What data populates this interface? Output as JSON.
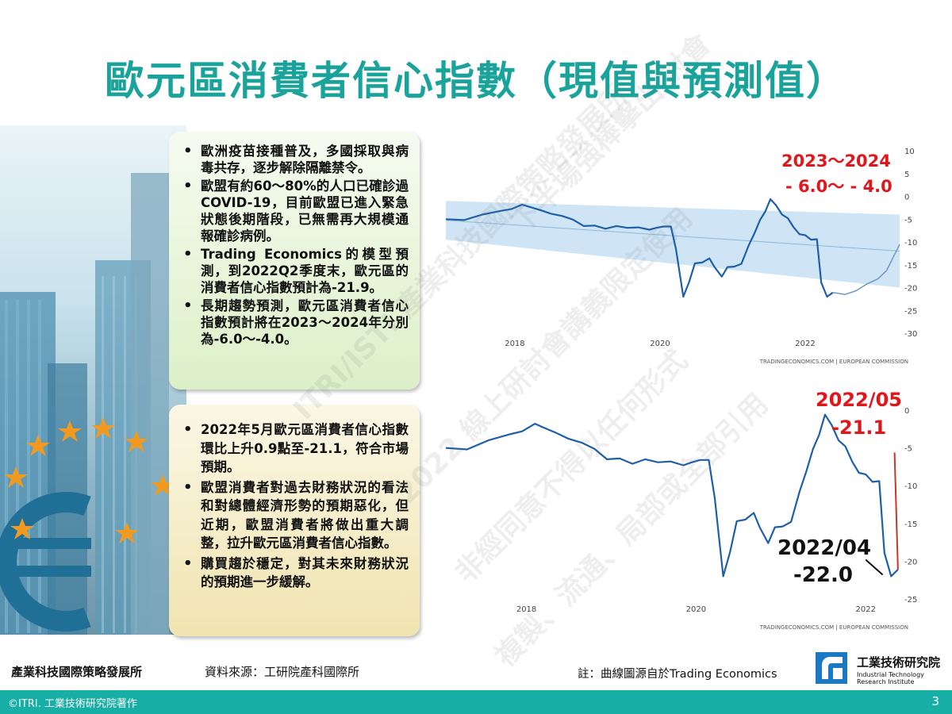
{
  "title": "歐元區消費者信心指數（現值與預測值）",
  "box1_bullets": [
    "歐洲疫苗接種普及，多國採取與病毒共存，逐步解除隔離禁令。",
    "歐盟有約60～80%的人口已確診過COVID-19，目前歐盟已進入緊急狀態後期階段，已無需再大規模通報確診病例。",
    "Trading Economics的模型預測，到2022Q2季度末，歐元區的消費者信心指數預計為-21.9。",
    "長期趨勢預測，歐元區消費者信心指數預計將在2023～2024年分別為-6.0～-4.0。"
  ],
  "box2_bullets": [
    "2022年5月歐元區消費者信心指數環比上升0.9點至-21.1，符合市場預期。",
    "歐盟消費者對過去財務狀況的看法和對總體經濟形勢的預期惡化，但近期，歐盟消費者將做出重大調整，拉升歐元區消費者信心指數。",
    "購買趨於穩定，對其未來財務狀況的預期進一步緩解。"
  ],
  "annotations": {
    "forecast_years": "2023～2024",
    "forecast_range": "- 6.0～ - 4.0",
    "may_date": "2022/05",
    "may_value": "-21.1",
    "apr_date": "2022/04",
    "apr_value": "-22.0"
  },
  "chart_source": "TRADINGECONOMICS.COM | EUROPEAN COMMISSION",
  "footer": {
    "org": "產業科技國際策略發展所",
    "source": "資料來源：工研院產科國際所",
    "note": "註：曲線圖源自於Trading Economics",
    "logo_name": "工業技術研究院",
    "logo_en": "Industrial Technology Research Institute",
    "copyright": "©ITRI. 工業技術研究院著作",
    "page": "3"
  },
  "watermark": [
    "ITRI/ISTI 產業科技國際策略發展所",
    "2022 線上研討會講義限定使用",
    "非經同意不得以任何形式",
    "複製、流通、局部或全部引用",
    "下半場強棒擊出 討會",
    "精彩"
  ],
  "colors": {
    "title": "#1aa39a",
    "line": "#1f5fa8",
    "band": "#bfdcf3",
    "red_annotation": "#e0161b",
    "bar": "#17aea5"
  },
  "chart_data": [
    {
      "type": "line",
      "x_ticks": [
        "2018",
        "2020",
        "2022"
      ],
      "y_ticks": [
        10,
        5,
        0,
        -5,
        -10,
        -15,
        -20,
        -25,
        -30
      ],
      "ylim": [
        -30,
        10
      ],
      "xlim": [
        2017.05,
        2023.3
      ],
      "grid": false,
      "series": [
        {
          "values": [
            [
              2017.05,
              -5.0
            ],
            [
              2017.3,
              -5.2
            ],
            [
              2017.55,
              -4.0
            ],
            [
              2017.8,
              -3.2
            ],
            [
              2017.95,
              -2.8
            ],
            [
              2018.1,
              -1.8
            ],
            [
              2018.2,
              -2.3
            ],
            [
              2018.35,
              -3.0
            ],
            [
              2018.5,
              -3.8
            ],
            [
              2018.65,
              -4.3
            ],
            [
              2018.8,
              -5.1
            ],
            [
              2018.95,
              -6.5
            ],
            [
              2019.1,
              -6.4
            ],
            [
              2019.25,
              -7.1
            ],
            [
              2019.4,
              -6.5
            ],
            [
              2019.55,
              -6.9
            ],
            [
              2019.7,
              -6.8
            ],
            [
              2019.85,
              -7.3
            ],
            [
              2019.95,
              -6.9
            ],
            [
              2020.05,
              -6.6
            ],
            [
              2020.15,
              -6.6
            ],
            [
              2020.22,
              -11.6
            ],
            [
              2020.32,
              -22.0
            ],
            [
              2020.4,
              -18.8
            ],
            [
              2020.48,
              -14.7
            ],
            [
              2020.58,
              -14.5
            ],
            [
              2020.68,
              -13.6
            ],
            [
              2020.75,
              -15.5
            ],
            [
              2020.85,
              -17.6
            ],
            [
              2020.93,
              -15.5
            ],
            [
              2021.02,
              -15.4
            ],
            [
              2021.12,
              -14.8
            ],
            [
              2021.22,
              -10.8
            ],
            [
              2021.3,
              -8.1
            ],
            [
              2021.38,
              -5.1
            ],
            [
              2021.45,
              -3.3
            ],
            [
              2021.52,
              -0.6
            ],
            [
              2021.6,
              -2.0
            ],
            [
              2021.68,
              -4.0
            ],
            [
              2021.76,
              -4.8
            ],
            [
              2021.84,
              -6.8
            ],
            [
              2021.92,
              -8.3
            ],
            [
              2022.0,
              -8.5
            ],
            [
              2022.08,
              -9.5
            ],
            [
              2022.16,
              -9.4
            ],
            [
              2022.22,
              -18.9
            ],
            [
              2022.3,
              -22.0
            ],
            [
              2022.38,
              -21.1
            ]
          ]
        },
        {
          "name": "forecast",
          "values": [
            [
              2022.38,
              -21.1
            ],
            [
              2022.55,
              -21.5
            ],
            [
              2022.7,
              -20.7
            ],
            [
              2022.85,
              -19.2
            ],
            [
              2023.0,
              -18.1
            ],
            [
              2023.12,
              -16.3
            ],
            [
              2023.3,
              -10.5
            ]
          ]
        }
      ],
      "band": {
        "upper": [
          [
            2017.05,
            -1.0
          ],
          [
            2023.3,
            -4.0
          ]
        ],
        "lower": [
          [
            2017.05,
            -9.5
          ],
          [
            2023.3,
            -20.0
          ]
        ]
      }
    },
    {
      "type": "line",
      "x_ticks": [
        "2018",
        "2020",
        "2022"
      ],
      "y_ticks": [
        0,
        -5,
        -10,
        -15,
        -20,
        -25
      ],
      "ylim": [
        -25,
        0
      ],
      "xlim": [
        2017.05,
        2022.4
      ],
      "grid": false,
      "series": [
        {
          "values": [
            [
              2017.05,
              -5.0
            ],
            [
              2017.3,
              -5.2
            ],
            [
              2017.55,
              -4.0
            ],
            [
              2017.8,
              -3.2
            ],
            [
              2017.95,
              -2.8
            ],
            [
              2018.1,
              -1.8
            ],
            [
              2018.2,
              -2.3
            ],
            [
              2018.35,
              -3.0
            ],
            [
              2018.5,
              -3.8
            ],
            [
              2018.65,
              -4.3
            ],
            [
              2018.8,
              -5.1
            ],
            [
              2018.95,
              -6.5
            ],
            [
              2019.1,
              -6.4
            ],
            [
              2019.25,
              -7.1
            ],
            [
              2019.4,
              -6.5
            ],
            [
              2019.55,
              -6.9
            ],
            [
              2019.7,
              -6.8
            ],
            [
              2019.85,
              -7.3
            ],
            [
              2019.95,
              -6.9
            ],
            [
              2020.05,
              -6.6
            ],
            [
              2020.15,
              -6.6
            ],
            [
              2020.22,
              -11.6
            ],
            [
              2020.32,
              -22.0
            ],
            [
              2020.4,
              -18.8
            ],
            [
              2020.48,
              -14.7
            ],
            [
              2020.58,
              -14.5
            ],
            [
              2020.68,
              -13.6
            ],
            [
              2020.75,
              -15.5
            ],
            [
              2020.85,
              -17.6
            ],
            [
              2020.93,
              -15.5
            ],
            [
              2021.02,
              -15.4
            ],
            [
              2021.12,
              -14.8
            ],
            [
              2021.22,
              -10.8
            ],
            [
              2021.3,
              -8.1
            ],
            [
              2021.38,
              -5.1
            ],
            [
              2021.45,
              -3.3
            ],
            [
              2021.52,
              -0.6
            ],
            [
              2021.6,
              -2.0
            ],
            [
              2021.68,
              -4.0
            ],
            [
              2021.76,
              -4.8
            ],
            [
              2021.84,
              -6.8
            ],
            [
              2021.92,
              -8.3
            ],
            [
              2022.0,
              -8.5
            ],
            [
              2022.08,
              -9.5
            ],
            [
              2022.16,
              -9.4
            ],
            [
              2022.22,
              -18.9
            ],
            [
              2022.3,
              -22.0
            ],
            [
              2022.38,
              -21.1
            ]
          ]
        }
      ]
    }
  ]
}
